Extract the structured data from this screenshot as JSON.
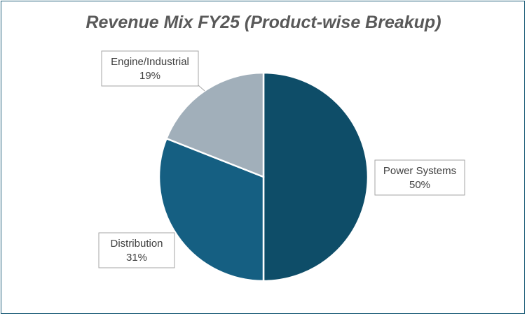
{
  "chart_data": {
    "type": "pie",
    "title": "Revenue Mix FY25 (Product-wise Breakup)",
    "categories": [
      "Power Systems",
      "Distribution",
      "Engine/Industrial"
    ],
    "values": [
      50,
      31,
      19
    ],
    "labels": [
      "50%",
      "31%",
      "19%"
    ],
    "colors": [
      "#0e4d68",
      "#155f82",
      "#a1afba"
    ],
    "start_angle": "12 o'clock, clockwise",
    "legend": "none (callout data labels)"
  }
}
